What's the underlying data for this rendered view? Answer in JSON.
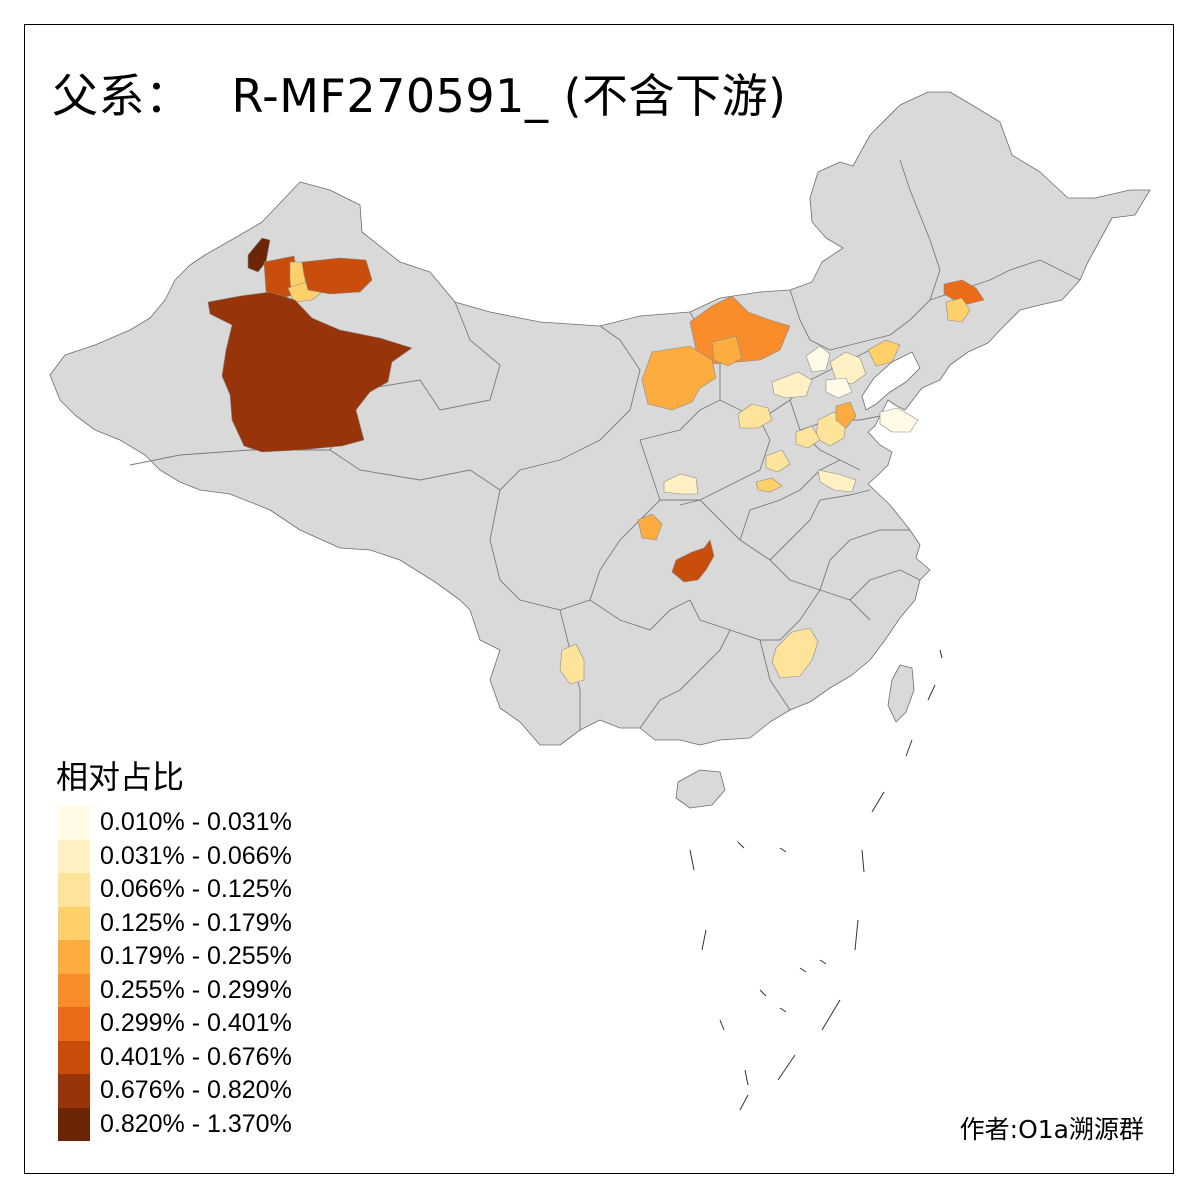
{
  "title": {
    "prefix": "父系：",
    "haplogroup": "R-MF270591_ (不含下游)"
  },
  "legend": {
    "title": "相对占比",
    "items": [
      {
        "label": "0.010% - 0.031%",
        "color": "#fffbe6"
      },
      {
        "label": "0.031% - 0.066%",
        "color": "#fff1c4"
      },
      {
        "label": "0.066% - 0.125%",
        "color": "#fee49a"
      },
      {
        "label": "0.125% - 0.179%",
        "color": "#fed06a"
      },
      {
        "label": "0.179% - 0.255%",
        "color": "#fdad3f"
      },
      {
        "label": "0.255% - 0.299%",
        "color": "#f98d2c"
      },
      {
        "label": "0.299% - 0.401%",
        "color": "#ea6b18"
      },
      {
        "label": "0.401% - 0.676%",
        "color": "#c94d0b"
      },
      {
        "label": "0.676% - 0.820%",
        "color": "#983409"
      },
      {
        "label": "0.820% - 1.370%",
        "color": "#6c2506"
      }
    ]
  },
  "credit": "作者:O1a溯源群",
  "map": {
    "base_color": "#d9d9d9",
    "no_data_color": "#d9d9d9"
  }
}
